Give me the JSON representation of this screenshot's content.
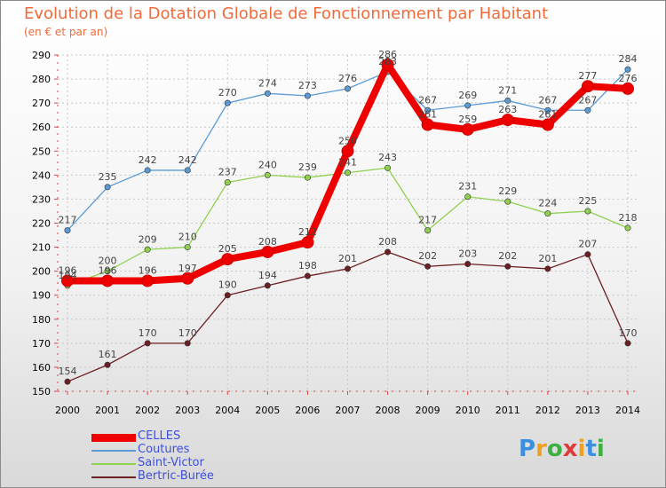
{
  "chart_data": {
    "type": "line",
    "title": "Evolution de la Dotation Globale de Fonctionnement par Habitant",
    "subtitle": "(en € et par an)",
    "categories": [
      "2000",
      "2001",
      "2002",
      "2003",
      "2004",
      "2005",
      "2006",
      "2007",
      "2008",
      "2009",
      "2010",
      "2011",
      "2012",
      "2013",
      "2014"
    ],
    "ylim": [
      150,
      290
    ],
    "yticks": [
      150,
      160,
      170,
      180,
      190,
      200,
      210,
      220,
      230,
      240,
      250,
      260,
      270,
      280,
      290
    ],
    "grid": true,
    "legend_position": "bottom-left",
    "series": [
      {
        "name": "CELLES",
        "color": "#ee0000",
        "values": [
          196,
          196,
          196,
          197,
          205,
          208,
          212,
          250,
          286,
          261,
          259,
          263,
          261,
          277,
          276
        ]
      },
      {
        "name": "Coutures",
        "color": "#5b9bd5",
        "values": [
          217,
          235,
          242,
          242,
          270,
          274,
          273,
          276,
          283,
          267,
          269,
          271,
          267,
          267,
          284
        ]
      },
      {
        "name": "Saint-Victor",
        "color": "#8fd14f",
        "values": [
          194,
          200,
          209,
          210,
          237,
          240,
          239,
          241,
          243,
          217,
          231,
          229,
          224,
          225,
          218
        ]
      },
      {
        "name": "Bertric-Burée",
        "color": "#6b1f22",
        "values": [
          154,
          161,
          170,
          170,
          190,
          194,
          198,
          201,
          208,
          202,
          203,
          202,
          201,
          207,
          170
        ]
      }
    ]
  },
  "logo": {
    "text": "Proxiti",
    "colors": [
      "#3a8fe0",
      "#f0a020",
      "#3cb043",
      "#e03a3a",
      "#f0a020",
      "#3a8fe0",
      "#3cb043"
    ]
  }
}
